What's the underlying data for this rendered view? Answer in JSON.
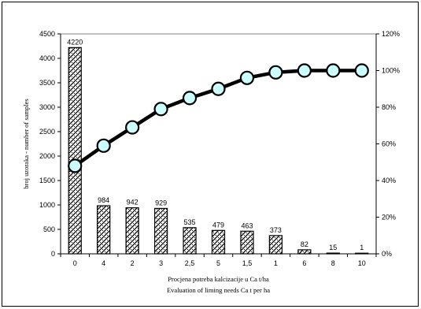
{
  "chart_data": {
    "type": "bar",
    "categories": [
      "0",
      "4",
      "2",
      "3",
      "2,5",
      "5",
      "1,5",
      "1",
      "6",
      "8",
      "10"
    ],
    "series": [
      {
        "type": "bar",
        "axis": "left",
        "values": [
          4220,
          984,
          942,
          929,
          535,
          479,
          463,
          373,
          82,
          15,
          1
        ],
        "data_labels": [
          "4220",
          "984",
          "942",
          "929",
          "535",
          "479",
          "463",
          "373",
          "82",
          "15",
          "1"
        ]
      },
      {
        "type": "line",
        "axis": "right",
        "values": [
          0.48,
          0.59,
          0.69,
          0.79,
          0.85,
          0.9,
          0.96,
          0.99,
          1.0,
          1.0,
          1.0
        ]
      }
    ],
    "ylabel": "broj uzoraka - number of samples",
    "xlabel_lines": [
      "Procjena potreba kalcizacije u Ca t/ha",
      "Evaluation of liming needs Ca t per ha"
    ],
    "ylim": [
      0,
      4500
    ],
    "y_ticks": [
      "0",
      "500",
      "1000",
      "1500",
      "2000",
      "2500",
      "3000",
      "3500",
      "4000",
      "4500"
    ],
    "y2lim": [
      0,
      1.2
    ],
    "y2_ticks": [
      "0%",
      "20%",
      "40%",
      "60%",
      "80%",
      "100%",
      "120%"
    ],
    "grid": false,
    "colors": {
      "bar_fill_pattern": "black-white-diagonal",
      "line": "#000000",
      "marker_fill": "#ccffff",
      "marker_edge": "#000000"
    }
  }
}
